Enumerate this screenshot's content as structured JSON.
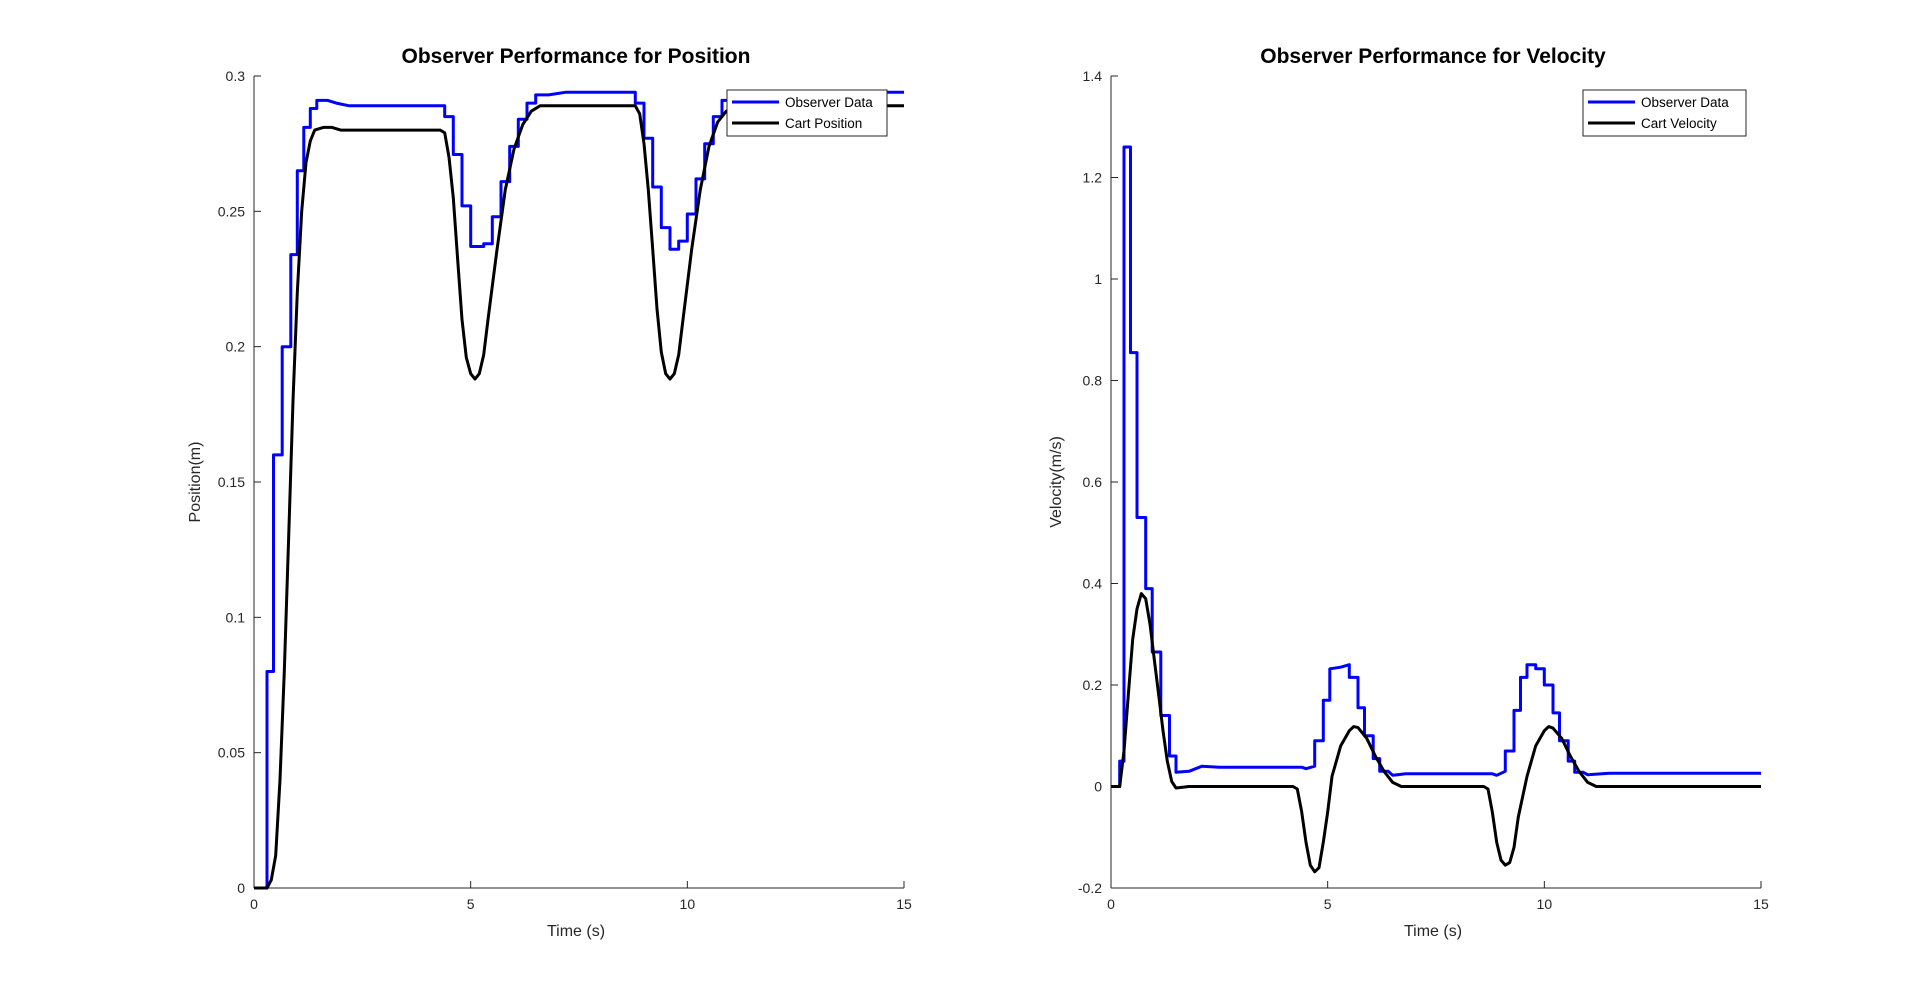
{
  "chart_data": [
    {
      "type": "line",
      "title": "Observer Performance for Position",
      "xlabel": "Time (s)",
      "ylabel": "Position(m)",
      "xlim": [
        0,
        15
      ],
      "ylim": [
        0,
        0.3
      ],
      "xticks": [
        "0",
        "5",
        "10",
        "15"
      ],
      "yticks": [
        "0",
        "0.05",
        "0.1",
        "0.15",
        "0.2",
        "0.25",
        "0.3"
      ],
      "grid": false,
      "legend_position": "top-right",
      "series": [
        {
          "name": "Observer Data",
          "color": "#0000ff",
          "step": true,
          "points": [
            [
              0,
              0
            ],
            [
              0.3,
              0
            ],
            [
              0.3,
              0.08
            ],
            [
              0.45,
              0.08
            ],
            [
              0.45,
              0.16
            ],
            [
              0.65,
              0.16
            ],
            [
              0.65,
              0.2
            ],
            [
              0.85,
              0.2
            ],
            [
              0.85,
              0.234
            ],
            [
              1.0,
              0.234
            ],
            [
              1.0,
              0.265
            ],
            [
              1.15,
              0.265
            ],
            [
              1.15,
              0.281
            ],
            [
              1.3,
              0.281
            ],
            [
              1.3,
              0.288
            ],
            [
              1.45,
              0.288
            ],
            [
              1.45,
              0.291
            ],
            [
              1.7,
              0.291
            ],
            [
              1.9,
              0.29
            ],
            [
              2.2,
              0.289
            ],
            [
              4.4,
              0.289
            ],
            [
              4.4,
              0.285
            ],
            [
              4.6,
              0.285
            ],
            [
              4.6,
              0.271
            ],
            [
              4.8,
              0.271
            ],
            [
              4.8,
              0.252
            ],
            [
              5.0,
              0.252
            ],
            [
              5.0,
              0.237
            ],
            [
              5.3,
              0.237
            ],
            [
              5.3,
              0.238
            ],
            [
              5.5,
              0.238
            ],
            [
              5.5,
              0.248
            ],
            [
              5.7,
              0.248
            ],
            [
              5.7,
              0.261
            ],
            [
              5.9,
              0.261
            ],
            [
              5.9,
              0.274
            ],
            [
              6.1,
              0.274
            ],
            [
              6.1,
              0.284
            ],
            [
              6.3,
              0.284
            ],
            [
              6.3,
              0.29
            ],
            [
              6.5,
              0.29
            ],
            [
              6.5,
              0.293
            ],
            [
              6.8,
              0.293
            ],
            [
              7.2,
              0.294
            ],
            [
              8.8,
              0.294
            ],
            [
              8.8,
              0.29
            ],
            [
              9.0,
              0.29
            ],
            [
              9.0,
              0.277
            ],
            [
              9.2,
              0.277
            ],
            [
              9.2,
              0.259
            ],
            [
              9.4,
              0.259
            ],
            [
              9.4,
              0.244
            ],
            [
              9.6,
              0.244
            ],
            [
              9.6,
              0.236
            ],
            [
              9.8,
              0.236
            ],
            [
              9.8,
              0.239
            ],
            [
              10.0,
              0.239
            ],
            [
              10.0,
              0.249
            ],
            [
              10.2,
              0.249
            ],
            [
              10.2,
              0.262
            ],
            [
              10.4,
              0.262
            ],
            [
              10.4,
              0.275
            ],
            [
              10.6,
              0.275
            ],
            [
              10.6,
              0.285
            ],
            [
              10.8,
              0.285
            ],
            [
              10.8,
              0.291
            ],
            [
              11.0,
              0.291
            ],
            [
              11.0,
              0.294
            ],
            [
              15,
              0.294
            ]
          ]
        },
        {
          "name": "Cart Position",
          "color": "#000000",
          "step": false,
          "points": [
            [
              0,
              0
            ],
            [
              0.3,
              0
            ],
            [
              0.4,
              0.003
            ],
            [
              0.5,
              0.012
            ],
            [
              0.6,
              0.04
            ],
            [
              0.7,
              0.08
            ],
            [
              0.8,
              0.13
            ],
            [
              0.9,
              0.18
            ],
            [
              1.0,
              0.22
            ],
            [
              1.1,
              0.25
            ],
            [
              1.2,
              0.268
            ],
            [
              1.3,
              0.276
            ],
            [
              1.4,
              0.28
            ],
            [
              1.6,
              0.281
            ],
            [
              1.8,
              0.281
            ],
            [
              2.0,
              0.28
            ],
            [
              4.3,
              0.28
            ],
            [
              4.4,
              0.279
            ],
            [
              4.5,
              0.27
            ],
            [
              4.6,
              0.255
            ],
            [
              4.7,
              0.232
            ],
            [
              4.8,
              0.21
            ],
            [
              4.9,
              0.196
            ],
            [
              5.0,
              0.19
            ],
            [
              5.1,
              0.188
            ],
            [
              5.2,
              0.19
            ],
            [
              5.3,
              0.197
            ],
            [
              5.4,
              0.21
            ],
            [
              5.6,
              0.235
            ],
            [
              5.8,
              0.258
            ],
            [
              6.0,
              0.273
            ],
            [
              6.2,
              0.282
            ],
            [
              6.4,
              0.287
            ],
            [
              6.6,
              0.289
            ],
            [
              8.8,
              0.289
            ],
            [
              8.9,
              0.286
            ],
            [
              9.0,
              0.275
            ],
            [
              9.1,
              0.258
            ],
            [
              9.2,
              0.236
            ],
            [
              9.3,
              0.214
            ],
            [
              9.4,
              0.198
            ],
            [
              9.5,
              0.19
            ],
            [
              9.6,
              0.188
            ],
            [
              9.7,
              0.19
            ],
            [
              9.8,
              0.197
            ],
            [
              9.9,
              0.21
            ],
            [
              10.1,
              0.236
            ],
            [
              10.3,
              0.258
            ],
            [
              10.5,
              0.274
            ],
            [
              10.7,
              0.283
            ],
            [
              10.9,
              0.287
            ],
            [
              11.1,
              0.289
            ],
            [
              15,
              0.289
            ]
          ]
        }
      ]
    },
    {
      "type": "line",
      "title": "Observer Performance for Velocity",
      "xlabel": "Time (s)",
      "ylabel": "Velocity(m/s)",
      "xlim": [
        0,
        15
      ],
      "ylim": [
        -0.2,
        1.4
      ],
      "xticks": [
        "0",
        "5",
        "10",
        "15"
      ],
      "yticks": [
        "-0.2",
        "0",
        "0.2",
        "0.4",
        "0.6",
        "0.8",
        "1",
        "1.2",
        "1.4"
      ],
      "grid": false,
      "legend_position": "top-right",
      "series": [
        {
          "name": "Observer Data",
          "color": "#0000ff",
          "step": true,
          "points": [
            [
              0,
              0
            ],
            [
              0.2,
              0
            ],
            [
              0.2,
              0.05
            ],
            [
              0.3,
              0.05
            ],
            [
              0.3,
              1.26
            ],
            [
              0.45,
              1.26
            ],
            [
              0.45,
              0.855
            ],
            [
              0.6,
              0.855
            ],
            [
              0.6,
              0.53
            ],
            [
              0.8,
              0.53
            ],
            [
              0.8,
              0.39
            ],
            [
              0.95,
              0.39
            ],
            [
              0.95,
              0.265
            ],
            [
              1.15,
              0.265
            ],
            [
              1.15,
              0.14
            ],
            [
              1.35,
              0.14
            ],
            [
              1.35,
              0.06
            ],
            [
              1.5,
              0.06
            ],
            [
              1.5,
              0.028
            ],
            [
              1.8,
              0.03
            ],
            [
              2.1,
              0.04
            ],
            [
              2.5,
              0.038
            ],
            [
              4.4,
              0.038
            ],
            [
              4.5,
              0.035
            ],
            [
              4.7,
              0.04
            ],
            [
              4.7,
              0.09
            ],
            [
              4.9,
              0.09
            ],
            [
              4.9,
              0.17
            ],
            [
              5.05,
              0.17
            ],
            [
              5.05,
              0.232
            ],
            [
              5.3,
              0.235
            ],
            [
              5.5,
              0.24
            ],
            [
              5.5,
              0.215
            ],
            [
              5.7,
              0.215
            ],
            [
              5.7,
              0.155
            ],
            [
              5.85,
              0.155
            ],
            [
              5.85,
              0.1
            ],
            [
              6.05,
              0.1
            ],
            [
              6.05,
              0.055
            ],
            [
              6.2,
              0.055
            ],
            [
              6.2,
              0.03
            ],
            [
              6.4,
              0.03
            ],
            [
              6.5,
              0.022
            ],
            [
              6.8,
              0.025
            ],
            [
              7.2,
              0.025
            ],
            [
              8.8,
              0.025
            ],
            [
              8.9,
              0.022
            ],
            [
              9.1,
              0.03
            ],
            [
              9.1,
              0.07
            ],
            [
              9.3,
              0.07
            ],
            [
              9.3,
              0.15
            ],
            [
              9.45,
              0.15
            ],
            [
              9.45,
              0.215
            ],
            [
              9.6,
              0.215
            ],
            [
              9.6,
              0.24
            ],
            [
              9.8,
              0.24
            ],
            [
              9.8,
              0.232
            ],
            [
              10.0,
              0.232
            ],
            [
              10.0,
              0.2
            ],
            [
              10.2,
              0.2
            ],
            [
              10.2,
              0.145
            ],
            [
              10.35,
              0.145
            ],
            [
              10.35,
              0.09
            ],
            [
              10.55,
              0.09
            ],
            [
              10.55,
              0.05
            ],
            [
              10.7,
              0.05
            ],
            [
              10.7,
              0.028
            ],
            [
              10.9,
              0.028
            ],
            [
              11.0,
              0.023
            ],
            [
              11.5,
              0.026
            ],
            [
              15,
              0.026
            ]
          ]
        },
        {
          "name": "Cart Velocity",
          "color": "#000000",
          "step": false,
          "points": [
            [
              0,
              0
            ],
            [
              0.2,
              0
            ],
            [
              0.3,
              0.07
            ],
            [
              0.4,
              0.18
            ],
            [
              0.5,
              0.29
            ],
            [
              0.6,
              0.35
            ],
            [
              0.7,
              0.38
            ],
            [
              0.8,
              0.37
            ],
            [
              0.9,
              0.32
            ],
            [
              1.0,
              0.25
            ],
            [
              1.1,
              0.18
            ],
            [
              1.2,
              0.11
            ],
            [
              1.3,
              0.05
            ],
            [
              1.4,
              0.01
            ],
            [
              1.5,
              -0.003
            ],
            [
              1.6,
              -0.002
            ],
            [
              1.8,
              0
            ],
            [
              4.2,
              0
            ],
            [
              4.3,
              -0.005
            ],
            [
              4.4,
              -0.05
            ],
            [
              4.5,
              -0.11
            ],
            [
              4.6,
              -0.155
            ],
            [
              4.7,
              -0.168
            ],
            [
              4.8,
              -0.16
            ],
            [
              4.9,
              -0.11
            ],
            [
              5.0,
              -0.05
            ],
            [
              5.1,
              0.02
            ],
            [
              5.3,
              0.08
            ],
            [
              5.5,
              0.11
            ],
            [
              5.6,
              0.118
            ],
            [
              5.7,
              0.116
            ],
            [
              5.9,
              0.095
            ],
            [
              6.1,
              0.06
            ],
            [
              6.3,
              0.03
            ],
            [
              6.5,
              0.008
            ],
            [
              6.7,
              0
            ],
            [
              8.6,
              0
            ],
            [
              8.7,
              -0.005
            ],
            [
              8.8,
              -0.05
            ],
            [
              8.9,
              -0.11
            ],
            [
              9.0,
              -0.145
            ],
            [
              9.1,
              -0.155
            ],
            [
              9.2,
              -0.15
            ],
            [
              9.3,
              -0.12
            ],
            [
              9.4,
              -0.06
            ],
            [
              9.6,
              0.02
            ],
            [
              9.8,
              0.08
            ],
            [
              10.0,
              0.11
            ],
            [
              10.1,
              0.118
            ],
            [
              10.2,
              0.115
            ],
            [
              10.4,
              0.095
            ],
            [
              10.6,
              0.06
            ],
            [
              10.8,
              0.03
            ],
            [
              11.0,
              0.008
            ],
            [
              11.2,
              0
            ],
            [
              15,
              0
            ]
          ]
        }
      ]
    }
  ]
}
